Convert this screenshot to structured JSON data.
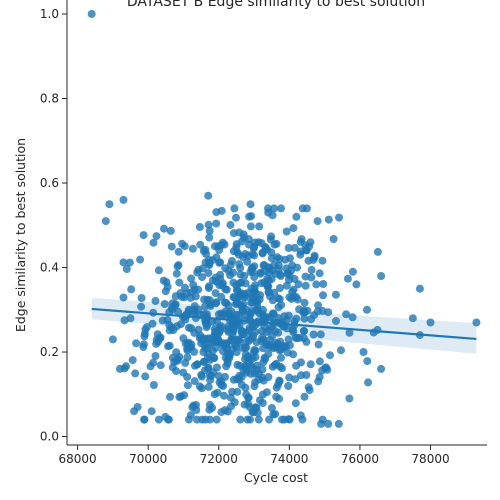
{
  "chart_data": {
    "type": "scatter",
    "title": "DATASET B Edge similarity to best solution",
    "xlabel": "Cycle cost",
    "ylabel": "Edge similarity to best solution",
    "xlim": [
      67700,
      79600
    ],
    "ylim": [
      -0.02,
      1.045
    ],
    "xticks": [
      68000,
      70000,
      72000,
      74000,
      76000,
      78000
    ],
    "yticks": [
      0.0,
      0.2,
      0.4,
      0.6,
      0.8,
      1.0
    ],
    "xtick_labels": [
      "68000",
      "70000",
      "72000",
      "74000",
      "76000",
      "78000"
    ],
    "ytick_labels": [
      "0.0",
      "0.2",
      "0.4",
      "0.6",
      "0.8",
      "1.0"
    ],
    "point_color": "#1f77b4",
    "regression": {
      "x": [
        68400,
        79300
      ],
      "y": [
        0.302,
        0.231
      ],
      "ci_upper": [
        0.328,
        0.268
      ],
      "ci_lower": [
        0.278,
        0.196
      ]
    },
    "highlighted_points": [
      {
        "x": 68400,
        "y": 1.0
      },
      {
        "x": 71700,
        "y": 0.57
      },
      {
        "x": 72900,
        "y": 0.55
      },
      {
        "x": 69300,
        "y": 0.56
      },
      {
        "x": 68900,
        "y": 0.55
      },
      {
        "x": 68800,
        "y": 0.51
      },
      {
        "x": 69000,
        "y": 0.23
      },
      {
        "x": 69200,
        "y": 0.16
      },
      {
        "x": 79300,
        "y": 0.27
      },
      {
        "x": 77700,
        "y": 0.35
      },
      {
        "x": 77700,
        "y": 0.24
      },
      {
        "x": 78000,
        "y": 0.27
      },
      {
        "x": 77500,
        "y": 0.28
      },
      {
        "x": 76600,
        "y": 0.38
      },
      {
        "x": 76600,
        "y": 0.16
      },
      {
        "x": 75100,
        "y": 0.03
      },
      {
        "x": 75400,
        "y": 0.03
      },
      {
        "x": 74900,
        "y": 0.03
      },
      {
        "x": 75700,
        "y": 0.09
      },
      {
        "x": 75900,
        "y": 0.36
      },
      {
        "x": 75800,
        "y": 0.39
      },
      {
        "x": 76200,
        "y": 0.3
      },
      {
        "x": 76100,
        "y": 0.2
      },
      {
        "x": 69600,
        "y": 0.06
      },
      {
        "x": 69700,
        "y": 0.07
      },
      {
        "x": 69500,
        "y": 0.28
      },
      {
        "x": 70100,
        "y": 0.06
      },
      {
        "x": 74800,
        "y": 0.51
      },
      {
        "x": 74600,
        "y": 0.46
      },
      {
        "x": 74200,
        "y": 0.52
      },
      {
        "x": 73400,
        "y": 0.53
      }
    ],
    "cloud_spec": {
      "count": 760,
      "x_mean": 72600,
      "x_sd": 1300,
      "x_min": 69300,
      "x_max": 76600,
      "y_mean": 0.27,
      "y_sd": 0.125,
      "y_min": 0.04,
      "y_max": 0.54
    }
  }
}
